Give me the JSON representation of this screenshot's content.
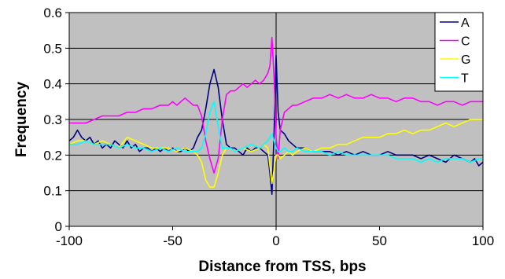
{
  "chart_data": {
    "type": "line",
    "xlabel": "Distance from TSS, bps",
    "ylabel": "Frequency",
    "xlim": [
      -100,
      100
    ],
    "ylim": [
      0,
      0.6
    ],
    "xticks": [
      -100,
      -50,
      0,
      50,
      100
    ],
    "yticks": [
      0,
      0.1,
      0.2,
      0.3,
      0.4,
      0.5,
      0.6
    ],
    "xtick_labels": [
      "-100",
      "-50",
      "0",
      "50",
      "100"
    ],
    "ytick_labels": [
      "0",
      "0.1",
      "0.2",
      "0.3",
      "0.4",
      "0.5",
      "0.6"
    ],
    "grid": "horizontal",
    "reference_line_x": 0,
    "legend_position": "top-right",
    "plot_background": "#c0c0c0",
    "series": [
      {
        "name": "A",
        "color": "#000080",
        "points": [
          [
            -100,
            0.24
          ],
          [
            -98,
            0.25
          ],
          [
            -96,
            0.27
          ],
          [
            -94,
            0.25
          ],
          [
            -92,
            0.24
          ],
          [
            -90,
            0.25
          ],
          [
            -88,
            0.23
          ],
          [
            -86,
            0.24
          ],
          [
            -84,
            0.22
          ],
          [
            -82,
            0.23
          ],
          [
            -80,
            0.22
          ],
          [
            -78,
            0.24
          ],
          [
            -76,
            0.23
          ],
          [
            -74,
            0.22
          ],
          [
            -72,
            0.24
          ],
          [
            -70,
            0.22
          ],
          [
            -68,
            0.23
          ],
          [
            -66,
            0.21
          ],
          [
            -64,
            0.22
          ],
          [
            -62,
            0.22
          ],
          [
            -60,
            0.21
          ],
          [
            -58,
            0.22
          ],
          [
            -56,
            0.21
          ],
          [
            -54,
            0.22
          ],
          [
            -52,
            0.21
          ],
          [
            -50,
            0.22
          ],
          [
            -48,
            0.21
          ],
          [
            -46,
            0.21
          ],
          [
            -44,
            0.22
          ],
          [
            -42,
            0.21
          ],
          [
            -40,
            0.22
          ],
          [
            -38,
            0.25
          ],
          [
            -36,
            0.27
          ],
          [
            -34,
            0.33
          ],
          [
            -32,
            0.4
          ],
          [
            -30,
            0.44
          ],
          [
            -28,
            0.39
          ],
          [
            -26,
            0.3
          ],
          [
            -24,
            0.23
          ],
          [
            -22,
            0.22
          ],
          [
            -20,
            0.22
          ],
          [
            -18,
            0.21
          ],
          [
            -16,
            0.2
          ],
          [
            -14,
            0.22
          ],
          [
            -12,
            0.21
          ],
          [
            -10,
            0.22
          ],
          [
            -8,
            0.22
          ],
          [
            -6,
            0.21
          ],
          [
            -4,
            0.2
          ],
          [
            -3,
            0.15
          ],
          [
            -2,
            0.09
          ],
          [
            -1,
            0.26
          ],
          [
            0,
            0.48
          ],
          [
            1,
            0.32
          ],
          [
            2,
            0.27
          ],
          [
            4,
            0.26
          ],
          [
            6,
            0.24
          ],
          [
            8,
            0.23
          ],
          [
            10,
            0.22
          ],
          [
            14,
            0.22
          ],
          [
            18,
            0.21
          ],
          [
            22,
            0.21
          ],
          [
            26,
            0.21
          ],
          [
            30,
            0.2
          ],
          [
            34,
            0.21
          ],
          [
            38,
            0.2
          ],
          [
            42,
            0.21
          ],
          [
            46,
            0.2
          ],
          [
            50,
            0.2
          ],
          [
            54,
            0.21
          ],
          [
            58,
            0.2
          ],
          [
            62,
            0.2
          ],
          [
            66,
            0.2
          ],
          [
            70,
            0.19
          ],
          [
            74,
            0.2
          ],
          [
            78,
            0.19
          ],
          [
            82,
            0.18
          ],
          [
            86,
            0.2
          ],
          [
            90,
            0.19
          ],
          [
            94,
            0.18
          ],
          [
            96,
            0.19
          ],
          [
            98,
            0.17
          ],
          [
            100,
            0.18
          ]
        ]
      },
      {
        "name": "C",
        "color": "#ff00ff",
        "points": [
          [
            -100,
            0.29
          ],
          [
            -96,
            0.29
          ],
          [
            -92,
            0.29
          ],
          [
            -88,
            0.3
          ],
          [
            -84,
            0.31
          ],
          [
            -80,
            0.31
          ],
          [
            -76,
            0.31
          ],
          [
            -72,
            0.32
          ],
          [
            -68,
            0.32
          ],
          [
            -64,
            0.33
          ],
          [
            -60,
            0.33
          ],
          [
            -56,
            0.34
          ],
          [
            -52,
            0.34
          ],
          [
            -50,
            0.35
          ],
          [
            -48,
            0.34
          ],
          [
            -46,
            0.35
          ],
          [
            -44,
            0.36
          ],
          [
            -42,
            0.35
          ],
          [
            -40,
            0.34
          ],
          [
            -38,
            0.34
          ],
          [
            -36,
            0.31
          ],
          [
            -34,
            0.24
          ],
          [
            -32,
            0.19
          ],
          [
            -30,
            0.15
          ],
          [
            -28,
            0.19
          ],
          [
            -26,
            0.3
          ],
          [
            -24,
            0.37
          ],
          [
            -22,
            0.38
          ],
          [
            -20,
            0.38
          ],
          [
            -18,
            0.39
          ],
          [
            -16,
            0.4
          ],
          [
            -14,
            0.39
          ],
          [
            -12,
            0.4
          ],
          [
            -10,
            0.41
          ],
          [
            -8,
            0.4
          ],
          [
            -6,
            0.41
          ],
          [
            -4,
            0.43
          ],
          [
            -3,
            0.45
          ],
          [
            -2,
            0.53
          ],
          [
            -1,
            0.42
          ],
          [
            0,
            0.25
          ],
          [
            1,
            0.19
          ],
          [
            2,
            0.27
          ],
          [
            4,
            0.32
          ],
          [
            6,
            0.33
          ],
          [
            8,
            0.34
          ],
          [
            10,
            0.34
          ],
          [
            14,
            0.35
          ],
          [
            18,
            0.36
          ],
          [
            22,
            0.36
          ],
          [
            26,
            0.37
          ],
          [
            30,
            0.36
          ],
          [
            34,
            0.37
          ],
          [
            38,
            0.36
          ],
          [
            42,
            0.36
          ],
          [
            46,
            0.37
          ],
          [
            50,
            0.36
          ],
          [
            54,
            0.36
          ],
          [
            58,
            0.35
          ],
          [
            62,
            0.36
          ],
          [
            66,
            0.36
          ],
          [
            70,
            0.35
          ],
          [
            74,
            0.35
          ],
          [
            78,
            0.34
          ],
          [
            82,
            0.35
          ],
          [
            86,
            0.35
          ],
          [
            90,
            0.34
          ],
          [
            94,
            0.35
          ],
          [
            98,
            0.35
          ],
          [
            100,
            0.35
          ]
        ]
      },
      {
        "name": "G",
        "color": "#ffff00",
        "points": [
          [
            -100,
            0.23
          ],
          [
            -96,
            0.24
          ],
          [
            -92,
            0.24
          ],
          [
            -88,
            0.23
          ],
          [
            -84,
            0.24
          ],
          [
            -80,
            0.23
          ],
          [
            -76,
            0.22
          ],
          [
            -72,
            0.25
          ],
          [
            -68,
            0.24
          ],
          [
            -64,
            0.23
          ],
          [
            -60,
            0.22
          ],
          [
            -56,
            0.22
          ],
          [
            -52,
            0.22
          ],
          [
            -48,
            0.21
          ],
          [
            -44,
            0.22
          ],
          [
            -40,
            0.21
          ],
          [
            -38,
            0.2
          ],
          [
            -36,
            0.18
          ],
          [
            -34,
            0.13
          ],
          [
            -32,
            0.11
          ],
          [
            -30,
            0.11
          ],
          [
            -28,
            0.15
          ],
          [
            -26,
            0.2
          ],
          [
            -24,
            0.22
          ],
          [
            -22,
            0.22
          ],
          [
            -20,
            0.21
          ],
          [
            -16,
            0.22
          ],
          [
            -12,
            0.21
          ],
          [
            -8,
            0.22
          ],
          [
            -6,
            0.23
          ],
          [
            -4,
            0.22
          ],
          [
            -3,
            0.17
          ],
          [
            -2,
            0.12
          ],
          [
            -1,
            0.16
          ],
          [
            0,
            0.2
          ],
          [
            1,
            0.2
          ],
          [
            2,
            0.19
          ],
          [
            4,
            0.2
          ],
          [
            6,
            0.21
          ],
          [
            8,
            0.2
          ],
          [
            10,
            0.21
          ],
          [
            14,
            0.22
          ],
          [
            18,
            0.21
          ],
          [
            22,
            0.22
          ],
          [
            26,
            0.22
          ],
          [
            30,
            0.23
          ],
          [
            34,
            0.23
          ],
          [
            38,
            0.24
          ],
          [
            42,
            0.25
          ],
          [
            46,
            0.25
          ],
          [
            50,
            0.25
          ],
          [
            54,
            0.26
          ],
          [
            58,
            0.26
          ],
          [
            62,
            0.27
          ],
          [
            66,
            0.26
          ],
          [
            70,
            0.27
          ],
          [
            74,
            0.27
          ],
          [
            78,
            0.28
          ],
          [
            82,
            0.29
          ],
          [
            86,
            0.28
          ],
          [
            90,
            0.29
          ],
          [
            94,
            0.3
          ],
          [
            98,
            0.3
          ],
          [
            100,
            0.3
          ]
        ]
      },
      {
        "name": "T",
        "color": "#00ffff",
        "points": [
          [
            -100,
            0.23
          ],
          [
            -96,
            0.23
          ],
          [
            -92,
            0.24
          ],
          [
            -88,
            0.23
          ],
          [
            -84,
            0.23
          ],
          [
            -80,
            0.23
          ],
          [
            -76,
            0.22
          ],
          [
            -72,
            0.23
          ],
          [
            -68,
            0.22
          ],
          [
            -64,
            0.22
          ],
          [
            -60,
            0.21
          ],
          [
            -56,
            0.22
          ],
          [
            -52,
            0.21
          ],
          [
            -48,
            0.22
          ],
          [
            -44,
            0.21
          ],
          [
            -40,
            0.21
          ],
          [
            -38,
            0.21
          ],
          [
            -36,
            0.22
          ],
          [
            -34,
            0.26
          ],
          [
            -32,
            0.32
          ],
          [
            -30,
            0.35
          ],
          [
            -28,
            0.28
          ],
          [
            -26,
            0.22
          ],
          [
            -24,
            0.22
          ],
          [
            -22,
            0.22
          ],
          [
            -20,
            0.21
          ],
          [
            -16,
            0.22
          ],
          [
            -12,
            0.23
          ],
          [
            -8,
            0.22
          ],
          [
            -6,
            0.23
          ],
          [
            -4,
            0.24
          ],
          [
            -3,
            0.25
          ],
          [
            -2,
            0.26
          ],
          [
            -1,
            0.24
          ],
          [
            0,
            0.22
          ],
          [
            1,
            0.21
          ],
          [
            2,
            0.21
          ],
          [
            4,
            0.22
          ],
          [
            6,
            0.21
          ],
          [
            8,
            0.21
          ],
          [
            10,
            0.22
          ],
          [
            14,
            0.21
          ],
          [
            18,
            0.21
          ],
          [
            22,
            0.21
          ],
          [
            26,
            0.2
          ],
          [
            30,
            0.21
          ],
          [
            34,
            0.2
          ],
          [
            38,
            0.2
          ],
          [
            42,
            0.2
          ],
          [
            46,
            0.2
          ],
          [
            50,
            0.2
          ],
          [
            54,
            0.2
          ],
          [
            58,
            0.19
          ],
          [
            62,
            0.19
          ],
          [
            66,
            0.19
          ],
          [
            70,
            0.18
          ],
          [
            74,
            0.19
          ],
          [
            78,
            0.18
          ],
          [
            82,
            0.19
          ],
          [
            86,
            0.19
          ],
          [
            90,
            0.19
          ],
          [
            94,
            0.18
          ],
          [
            98,
            0.19
          ],
          [
            100,
            0.19
          ]
        ]
      }
    ]
  }
}
